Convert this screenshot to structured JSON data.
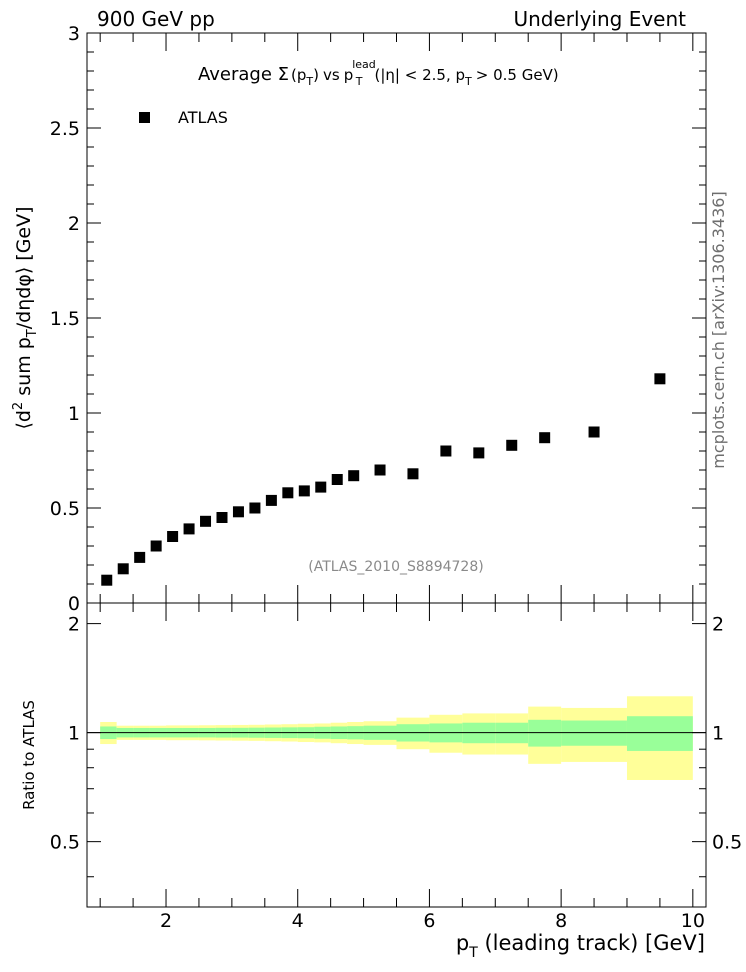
{
  "header": {
    "left": "900 GeV pp",
    "right": "Underlying Event"
  },
  "side_label": "mcplots.cern.ch [arXiv:1306.3436]",
  "colors": {
    "band_outer": "#ffff99",
    "band_inner": "#99ff99",
    "marker": "#000000",
    "reference_text": "#8a8a8a"
  },
  "chart_data": [
    {
      "type": "scatter",
      "title": {
        "prefix": "Average ",
        "sigma": "Σ",
        "p": "p",
        "T": "T",
        "lead": "lead",
        "vs": "vs",
        "cuts_a": "(|η| < 2.5, p",
        "cuts_b": "> 0.5 GeV)"
      },
      "ylabel": {
        "open": "⟨d",
        "two": "2",
        "mid": " sum p",
        "T": "T",
        "tail": "/dηdφ⟩ [GeV]"
      },
      "legend": {
        "label": "ATLAS",
        "position": "top-left"
      },
      "reference": "(ATLAS_2010_S8894728)",
      "xlim": [
        0.8,
        10.2
      ],
      "ylim": [
        0,
        3
      ],
      "yticks": [
        0,
        0.5,
        1,
        1.5,
        2,
        2.5,
        3
      ],
      "ytick_labels": [
        "0",
        "0.5",
        "1",
        "1.5",
        "2",
        "2.5",
        "3"
      ],
      "series": [
        {
          "name": "ATLAS",
          "x": [
            1.1,
            1.35,
            1.6,
            1.85,
            2.1,
            2.35,
            2.6,
            2.85,
            3.1,
            3.35,
            3.6,
            3.85,
            4.1,
            4.35,
            4.6,
            4.85,
            5.25,
            5.75,
            6.25,
            6.75,
            7.25,
            7.75,
            8.5,
            9.5
          ],
          "y": [
            0.12,
            0.18,
            0.24,
            0.3,
            0.35,
            0.39,
            0.43,
            0.45,
            0.48,
            0.5,
            0.54,
            0.58,
            0.59,
            0.61,
            0.65,
            0.67,
            0.7,
            0.68,
            0.8,
            0.79,
            0.83,
            0.87,
            0.9,
            1.18
          ]
        }
      ]
    },
    {
      "type": "area",
      "ylabel": "Ratio to ATLAS",
      "xlabel": {
        "p": "p",
        "T": "T",
        "text": " (leading track) [GeV]"
      },
      "xlim": [
        0.8,
        10.2
      ],
      "ylim": [
        0.33,
        2.28
      ],
      "xticks": [
        2,
        4,
        6,
        8,
        10
      ],
      "xtick_labels": [
        "2",
        "4",
        "6",
        "8",
        "10"
      ],
      "yticks": [
        0.5,
        1,
        2
      ],
      "ytick_labels": [
        "0.5",
        "1",
        "2"
      ],
      "bins": [
        {
          "lo": 1.0,
          "hi": 1.25,
          "inner": [
            0.96,
            1.04
          ],
          "outer": [
            0.93,
            1.07
          ]
        },
        {
          "lo": 1.25,
          "hi": 1.5,
          "inner": [
            0.97,
            1.03
          ],
          "outer": [
            0.955,
            1.045
          ]
        },
        {
          "lo": 1.5,
          "hi": 1.75,
          "inner": [
            0.97,
            1.03
          ],
          "outer": [
            0.955,
            1.045
          ]
        },
        {
          "lo": 1.75,
          "hi": 2.0,
          "inner": [
            0.97,
            1.03
          ],
          "outer": [
            0.955,
            1.045
          ]
        },
        {
          "lo": 2.0,
          "hi": 2.25,
          "inner": [
            0.97,
            1.03
          ],
          "outer": [
            0.953,
            1.047
          ]
        },
        {
          "lo": 2.25,
          "hi": 2.5,
          "inner": [
            0.97,
            1.03
          ],
          "outer": [
            0.953,
            1.047
          ]
        },
        {
          "lo": 2.5,
          "hi": 2.75,
          "inner": [
            0.97,
            1.03
          ],
          "outer": [
            0.952,
            1.048
          ]
        },
        {
          "lo": 2.75,
          "hi": 3.0,
          "inner": [
            0.969,
            1.031
          ],
          "outer": [
            0.951,
            1.049
          ]
        },
        {
          "lo": 3.0,
          "hi": 3.25,
          "inner": [
            0.969,
            1.031
          ],
          "outer": [
            0.95,
            1.05
          ]
        },
        {
          "lo": 3.25,
          "hi": 3.5,
          "inner": [
            0.968,
            1.032
          ],
          "outer": [
            0.949,
            1.051
          ]
        },
        {
          "lo": 3.5,
          "hi": 3.75,
          "inner": [
            0.967,
            1.033
          ],
          "outer": [
            0.947,
            1.053
          ]
        },
        {
          "lo": 3.75,
          "hi": 4.0,
          "inner": [
            0.966,
            1.034
          ],
          "outer": [
            0.945,
            1.055
          ]
        },
        {
          "lo": 4.0,
          "hi": 4.25,
          "inner": [
            0.965,
            1.035
          ],
          "outer": [
            0.942,
            1.058
          ]
        },
        {
          "lo": 4.25,
          "hi": 4.5,
          "inner": [
            0.962,
            1.038
          ],
          "outer": [
            0.94,
            1.06
          ]
        },
        {
          "lo": 4.5,
          "hi": 4.75,
          "inner": [
            0.96,
            1.04
          ],
          "outer": [
            0.935,
            1.065
          ]
        },
        {
          "lo": 4.75,
          "hi": 5.0,
          "inner": [
            0.958,
            1.042
          ],
          "outer": [
            0.93,
            1.07
          ]
        },
        {
          "lo": 5.0,
          "hi": 5.5,
          "inner": [
            0.955,
            1.045
          ],
          "outer": [
            0.925,
            1.075
          ]
        },
        {
          "lo": 5.5,
          "hi": 6.0,
          "inner": [
            0.945,
            1.055
          ],
          "outer": [
            0.9,
            1.1
          ]
        },
        {
          "lo": 6.0,
          "hi": 6.5,
          "inner": [
            0.94,
            1.06
          ],
          "outer": [
            0.88,
            1.12
          ]
        },
        {
          "lo": 6.5,
          "hi": 7.0,
          "inner": [
            0.935,
            1.065
          ],
          "outer": [
            0.87,
            1.13
          ]
        },
        {
          "lo": 7.0,
          "hi": 7.5,
          "inner": [
            0.935,
            1.065
          ],
          "outer": [
            0.87,
            1.13
          ]
        },
        {
          "lo": 7.5,
          "hi": 8.0,
          "inner": [
            0.915,
            1.085
          ],
          "outer": [
            0.82,
            1.18
          ]
        },
        {
          "lo": 8.0,
          "hi": 9.0,
          "inner": [
            0.92,
            1.08
          ],
          "outer": [
            0.83,
            1.17
          ]
        },
        {
          "lo": 9.0,
          "hi": 10.0,
          "inner": [
            0.89,
            1.11
          ],
          "outer": [
            0.74,
            1.26
          ]
        }
      ]
    }
  ]
}
